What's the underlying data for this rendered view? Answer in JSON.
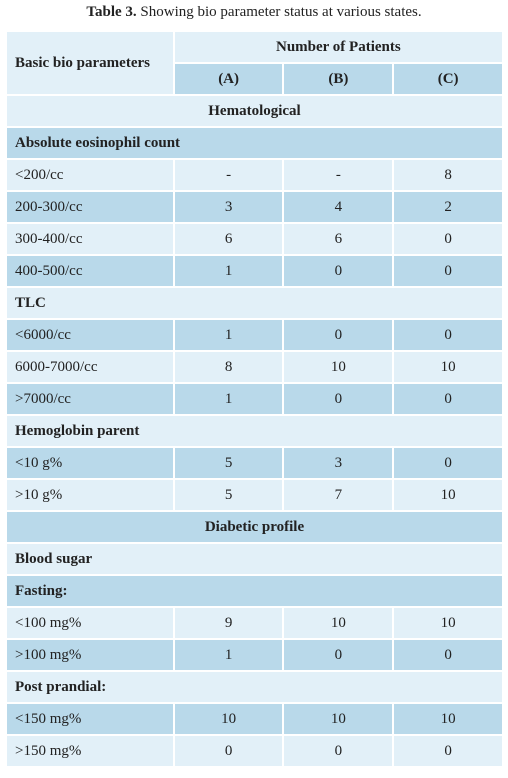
{
  "caption": {
    "label": "Table 3.",
    "text": "Showing bio parameter status at various states."
  },
  "header": {
    "first": "Basic bio parameters",
    "group": "Number of Patients",
    "columns": [
      "(A)",
      "(B)",
      "(C)"
    ]
  },
  "rows": [
    {
      "heading": "Hematological"
    },
    {
      "group": "Absolute eosinophil count"
    },
    {
      "cells": [
        "<200/cc",
        "-",
        "-",
        8
      ]
    },
    {
      "cells": [
        "200-300/cc",
        3,
        4,
        2
      ]
    },
    {
      "cells": [
        "300-400/cc",
        6,
        6,
        0
      ]
    },
    {
      "cells": [
        "400-500/cc",
        1,
        0,
        0
      ]
    },
    {
      "group": "TLC"
    },
    {
      "cells": [
        "<6000/cc",
        1,
        0,
        0
      ]
    },
    {
      "cells": [
        "6000-7000/cc",
        8,
        10,
        10
      ]
    },
    {
      "cells": [
        ">7000/cc",
        1,
        0,
        0
      ]
    },
    {
      "group": "Hemoglobin parent"
    },
    {
      "cells": [
        "<10 g%",
        5,
        3,
        0
      ]
    },
    {
      "cells": [
        ">10 g%",
        5,
        7,
        10
      ]
    },
    {
      "heading": "Diabetic profile"
    },
    {
      "group": "Blood sugar"
    },
    {
      "group": "Fasting:"
    },
    {
      "cells": [
        "<100 mg%",
        9,
        10,
        10
      ]
    },
    {
      "cells": [
        ">100 mg%",
        1,
        0,
        0
      ]
    },
    {
      "group": "Post prandial:"
    },
    {
      "cells": [
        "<150 mg%",
        10,
        10,
        10
      ]
    },
    {
      "cells": [
        ">150 mg%",
        0,
        0,
        0
      ]
    }
  ]
}
